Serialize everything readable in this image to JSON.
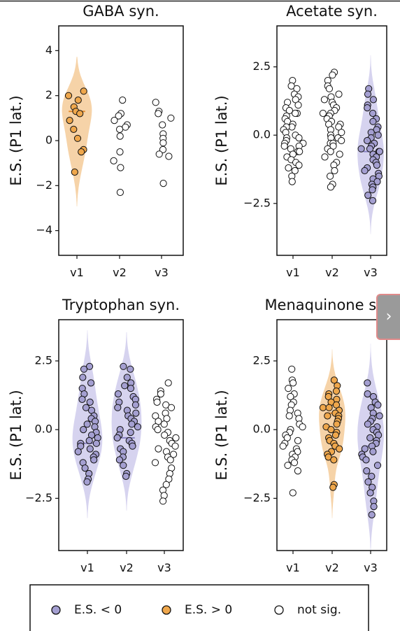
{
  "colors": {
    "neg": "#a49fd1",
    "neg_violin": "#c8c4ea",
    "pos": "#efa74c",
    "pos_violin": "#f3c48b",
    "ns": "#ffffff",
    "edge": "#111111"
  },
  "nav": {
    "icon": "chevron-right-icon",
    "glyph": "›"
  },
  "legend": {
    "items": [
      {
        "label": "E.S. < 0",
        "color": "#a49fd1"
      },
      {
        "label": "E.S. > 0",
        "color": "#efa74c"
      },
      {
        "label": "not sig.",
        "color": "#ffffff"
      }
    ]
  },
  "chart_data": [
    {
      "type": "scatter",
      "title": "GABA syn.",
      "ylabel": "E.S. (P1 lat.)",
      "categories": [
        "v1",
        "v2",
        "v3"
      ],
      "ylim": [
        -5.1,
        5.1
      ],
      "yticks": [
        4,
        2,
        0,
        -2,
        -4
      ],
      "ytick_labels": [
        "4",
        "2",
        "0",
        "−2",
        "−4"
      ],
      "groups": [
        {
          "category": "v1",
          "status": "pos",
          "violin": true,
          "median": 1.3,
          "values": [
            2.2,
            2.0,
            1.8,
            1.5,
            1.3,
            1.2,
            0.9,
            0.5,
            0.1,
            -0.4,
            -0.5,
            -1.4
          ]
        },
        {
          "category": "v2",
          "status": "ns",
          "violin": false,
          "values": [
            1.8,
            1.2,
            1.1,
            0.9,
            0.7,
            0.6,
            0.5,
            0.2,
            -0.5,
            -0.9,
            -1.2,
            -2.3
          ]
        },
        {
          "category": "v3",
          "status": "ns",
          "violin": false,
          "values": [
            1.7,
            1.3,
            1.2,
            1.0,
            0.7,
            0.3,
            0.1,
            -0.1,
            -0.4,
            -0.6,
            -0.7,
            -1.9
          ]
        }
      ]
    },
    {
      "type": "scatter",
      "title": "Acetate syn.",
      "ylabel": "E.S. (P1 lat.)",
      "categories": [
        "v1",
        "v2",
        "v3"
      ],
      "ylim": [
        -4.4,
        4.0
      ],
      "yticks": [
        2.5,
        0.0,
        -2.5
      ],
      "ytick_labels": [
        "2.5",
        "0.0",
        "−2.5"
      ],
      "groups": [
        {
          "category": "v1",
          "status": "ns",
          "violin": false,
          "values": [
            2.0,
            1.8,
            1.7,
            1.5,
            1.4,
            1.3,
            1.2,
            1.1,
            1.0,
            0.9,
            0.8,
            0.8,
            0.7,
            0.6,
            0.5,
            0.4,
            0.3,
            0.3,
            0.2,
            0.1,
            0.0,
            -0.1,
            -0.1,
            -0.2,
            -0.3,
            -0.3,
            -0.4,
            -0.4,
            -0.5,
            -0.6,
            -0.6,
            -0.7,
            -0.8,
            -0.9,
            -1.0,
            -1.1,
            -1.2,
            -1.3,
            -1.5,
            -1.7
          ]
        },
        {
          "category": "v2",
          "status": "ns",
          "violin": false,
          "values": [
            2.3,
            2.2,
            2.0,
            1.8,
            1.7,
            1.5,
            1.4,
            1.3,
            1.2,
            1.1,
            1.0,
            0.9,
            0.8,
            0.8,
            0.7,
            0.6,
            0.5,
            0.4,
            0.4,
            0.3,
            0.2,
            0.1,
            0.0,
            -0.1,
            -0.1,
            -0.2,
            -0.3,
            -0.3,
            -0.4,
            -0.5,
            -0.6,
            -0.7,
            -0.8,
            -1.0,
            -1.1,
            -1.3,
            -1.5,
            -1.8,
            -1.9
          ]
        },
        {
          "category": "v3",
          "status": "neg",
          "violin": true,
          "median": -0.6,
          "values": [
            1.7,
            1.5,
            1.3,
            1.1,
            1.0,
            0.8,
            0.6,
            0.5,
            0.3,
            0.2,
            0.1,
            0.0,
            -0.1,
            -0.2,
            -0.3,
            -0.4,
            -0.5,
            -0.5,
            -0.6,
            -0.6,
            -0.7,
            -0.8,
            -0.9,
            -1.0,
            -1.1,
            -1.2,
            -1.3,
            -1.4,
            -1.5,
            -1.6,
            -1.7,
            -1.8,
            -1.9,
            -2.0,
            -2.2,
            -2.4
          ]
        }
      ]
    },
    {
      "type": "scatter",
      "title": "Tryptophan syn.",
      "ylabel": "E.S. (P1 lat.)",
      "categories": [
        "v1",
        "v2",
        "v3"
      ],
      "ylim": [
        -4.4,
        4.0
      ],
      "yticks": [
        2.5,
        0.0,
        -2.5
      ],
      "ytick_labels": [
        "2.5",
        "0.0",
        "−2.5"
      ],
      "groups": [
        {
          "category": "v1",
          "status": "neg",
          "violin": true,
          "median": -0.5,
          "values": [
            2.3,
            2.2,
            1.9,
            1.7,
            1.5,
            1.3,
            1.1,
            1.0,
            0.8,
            0.7,
            0.5,
            0.4,
            0.3,
            0.2,
            0.1,
            0.0,
            -0.1,
            -0.2,
            -0.3,
            -0.4,
            -0.5,
            -0.5,
            -0.6,
            -0.7,
            -0.8,
            -0.9,
            -1.0,
            -1.1,
            -1.2,
            -1.4,
            -1.6,
            -1.8,
            -1.9
          ]
        },
        {
          "category": "v2",
          "status": "neg",
          "violin": true,
          "median": -0.3,
          "values": [
            2.3,
            2.2,
            1.9,
            1.7,
            1.6,
            1.5,
            1.3,
            1.2,
            1.1,
            1.0,
            0.9,
            0.8,
            0.7,
            0.6,
            0.5,
            0.4,
            0.3,
            0.2,
            0.1,
            0.0,
            -0.1,
            -0.2,
            -0.3,
            -0.4,
            -0.5,
            -0.6,
            -0.7,
            -0.8,
            -1.0,
            -1.1,
            -1.3,
            -1.6,
            -1.7
          ]
        },
        {
          "category": "v3",
          "status": "ns",
          "violin": false,
          "values": [
            1.7,
            1.4,
            1.3,
            1.1,
            1.0,
            0.9,
            0.8,
            0.6,
            0.5,
            0.4,
            0.3,
            0.2,
            0.1,
            0.0,
            -0.1,
            -0.2,
            -0.3,
            -0.4,
            -0.5,
            -0.6,
            -0.7,
            -0.8,
            -0.9,
            -1.0,
            -1.1,
            -1.2,
            -1.4,
            -1.6,
            -1.8,
            -2.0,
            -2.2,
            -2.4,
            -2.6
          ]
        }
      ]
    },
    {
      "type": "scatter",
      "title": "Menaquinone syn.",
      "ylabel": "E.S. (P1 lat.)",
      "categories": [
        "v1",
        "v2",
        "v3"
      ],
      "ylim": [
        -4.4,
        4.0
      ],
      "yticks": [
        2.5,
        0.0,
        -2.5
      ],
      "ytick_labels": [
        "2.5",
        "0.0",
        "−2.5"
      ],
      "groups": [
        {
          "category": "v1",
          "status": "ns",
          "violin": false,
          "values": [
            2.2,
            1.8,
            1.7,
            1.5,
            1.3,
            1.2,
            1.0,
            0.9,
            0.7,
            0.6,
            0.5,
            0.4,
            0.2,
            0.1,
            0.0,
            -0.1,
            -0.2,
            -0.3,
            -0.4,
            -0.5,
            -0.6,
            -0.7,
            -0.8,
            -0.9,
            -1.0,
            -1.1,
            -1.2,
            -1.3,
            -1.5,
            -2.3
          ]
        },
        {
          "category": "v2",
          "status": "pos",
          "violin": true,
          "median": 0.6,
          "values": [
            1.8,
            1.6,
            1.4,
            1.3,
            1.2,
            1.1,
            1.0,
            0.9,
            0.8,
            0.8,
            0.7,
            0.6,
            0.5,
            0.5,
            0.4,
            0.3,
            0.2,
            0.1,
            0.0,
            -0.1,
            -0.2,
            -0.3,
            -0.4,
            -0.5,
            -0.6,
            -0.7,
            -0.8,
            -0.9,
            -1.0,
            -1.1,
            -2.0,
            -2.1
          ]
        },
        {
          "category": "v3",
          "status": "neg",
          "violin": true,
          "median": -0.6,
          "values": [
            1.7,
            1.3,
            1.2,
            1.0,
            0.9,
            0.8,
            0.6,
            0.5,
            0.4,
            0.3,
            0.2,
            0.1,
            0.0,
            -0.1,
            -0.2,
            -0.3,
            -0.4,
            -0.5,
            -0.6,
            -0.7,
            -0.8,
            -0.9,
            -1.0,
            -1.1,
            -1.3,
            -1.5,
            -1.7,
            -1.9,
            -2.1,
            -2.3,
            -2.6,
            -2.8,
            -3.1
          ]
        }
      ]
    }
  ]
}
